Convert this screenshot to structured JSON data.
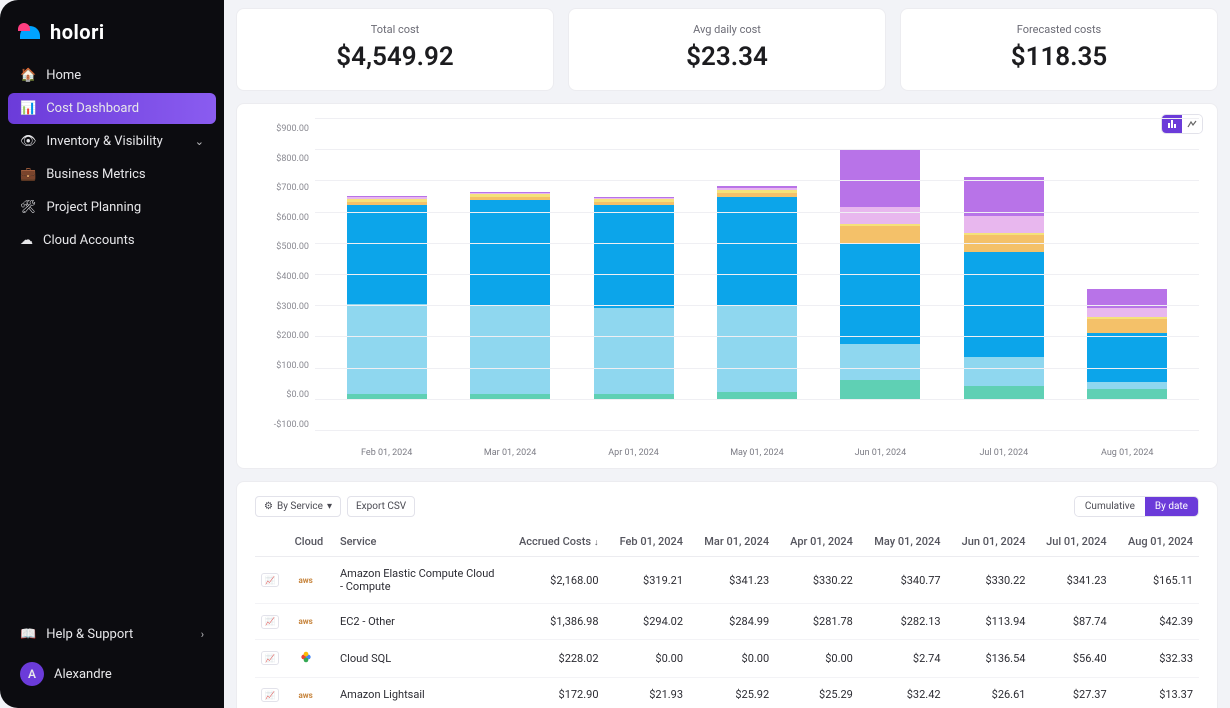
{
  "brand": {
    "name": "holori"
  },
  "sidebar": {
    "items": [
      {
        "label": "Home",
        "icon": "home"
      },
      {
        "label": "Cost Dashboard",
        "icon": "chart",
        "active": true
      },
      {
        "label": "Inventory & Visibility",
        "icon": "eye",
        "expandable": true
      },
      {
        "label": "Business Metrics",
        "icon": "briefcase"
      },
      {
        "label": "Project Planning",
        "icon": "hierarchy"
      },
      {
        "label": "Cloud Accounts",
        "icon": "cloud"
      }
    ],
    "help": {
      "label": "Help & Support"
    },
    "user": {
      "name": "Alexandre",
      "initial": "A"
    }
  },
  "kpis": [
    {
      "label": "Total cost",
      "value": "$4,549.92"
    },
    {
      "label": "Avg daily cost",
      "value": "$23.34"
    },
    {
      "label": "Forecasted costs",
      "value": "$118.35"
    }
  ],
  "chart": {
    "type": "stacked-bar",
    "ylim": [
      -100,
      900
    ],
    "ytick_step": 100,
    "yticks": [
      "$900.00",
      "$800.00",
      "$700.00",
      "$600.00",
      "$500.00",
      "$400.00",
      "$300.00",
      "$200.00",
      "$100.00",
      "$0.00",
      "-$100.00"
    ],
    "grid_color": "#efeff3",
    "background": "#ffffff",
    "label_fontsize": 9,
    "categories": [
      "Feb 01, 2024",
      "Mar 01, 2024",
      "Apr 01, 2024",
      "May 01, 2024",
      "Jun 01, 2024",
      "Jul 01, 2024",
      "Aug 01, 2024"
    ],
    "series_colors": {
      "teal": "#5fd0b4",
      "lightblue": "#8fd7ef",
      "blue": "#0ca5ea",
      "orange": "#f4c169",
      "yellow": "#f5e27a",
      "pink": "#e8b7ee",
      "purple": "#b873e8"
    },
    "stacks": [
      {
        "teal": 15,
        "lightblue": 290,
        "blue": 315,
        "orange": 10,
        "yellow": 12,
        "pink": 4,
        "purple": 4
      },
      {
        "teal": 15,
        "lightblue": 283,
        "blue": 338,
        "orange": 10,
        "yellow": 10,
        "pink": 4,
        "purple": 4
      },
      {
        "teal": 15,
        "lightblue": 275,
        "blue": 330,
        "orange": 10,
        "yellow": 10,
        "pink": 4,
        "purple": 4
      },
      {
        "teal": 22,
        "lightblue": 280,
        "blue": 345,
        "orange": 12,
        "yellow": 12,
        "pink": 5,
        "purple": 5
      },
      {
        "teal": 60,
        "lightblue": 115,
        "blue": 325,
        "orange": 55,
        "yellow": 6,
        "pink": 55,
        "purple": 185
      },
      {
        "teal": 40,
        "lightblue": 95,
        "blue": 335,
        "orange": 55,
        "yellow": 6,
        "pink": 55,
        "purple": 125
      },
      {
        "teal": 30,
        "lightblue": 25,
        "blue": 155,
        "orange": 45,
        "yellow": 6,
        "pink": 30,
        "purple": 60
      }
    ]
  },
  "table": {
    "toolbar": {
      "group_btn": "By Service",
      "export_btn": "Export CSV",
      "mode_a": "Cumulative",
      "mode_b": "By date"
    },
    "columns": [
      "",
      "Cloud",
      "Service",
      "Accrued Costs",
      "Feb 01, 2024",
      "Mar 01, 2024",
      "Apr 01, 2024",
      "May 01, 2024",
      "Jun 01, 2024",
      "Jul 01, 2024",
      "Aug 01, 2024"
    ],
    "rows": [
      {
        "cloud": "aws",
        "service": "Amazon Elastic Compute Cloud - Compute",
        "accrued": "$2,168.00",
        "vals": [
          "$319.21",
          "$341.23",
          "$330.22",
          "$340.77",
          "$330.22",
          "$341.23",
          "$165.11"
        ]
      },
      {
        "cloud": "aws",
        "service": "EC2 - Other",
        "accrued": "$1,386.98",
        "vals": [
          "$294.02",
          "$284.99",
          "$281.78",
          "$282.13",
          "$113.94",
          "$87.74",
          "$42.39"
        ]
      },
      {
        "cloud": "gcp",
        "service": "Cloud SQL",
        "accrued": "$228.02",
        "vals": [
          "$0.00",
          "$0.00",
          "$0.00",
          "$2.74",
          "$136.54",
          "$56.40",
          "$32.33"
        ]
      },
      {
        "cloud": "aws",
        "service": "Amazon Lightsail",
        "accrued": "$172.90",
        "vals": [
          "$21.93",
          "$25.92",
          "$25.29",
          "$32.42",
          "$26.61",
          "$27.37",
          "$13.37"
        ]
      }
    ]
  }
}
